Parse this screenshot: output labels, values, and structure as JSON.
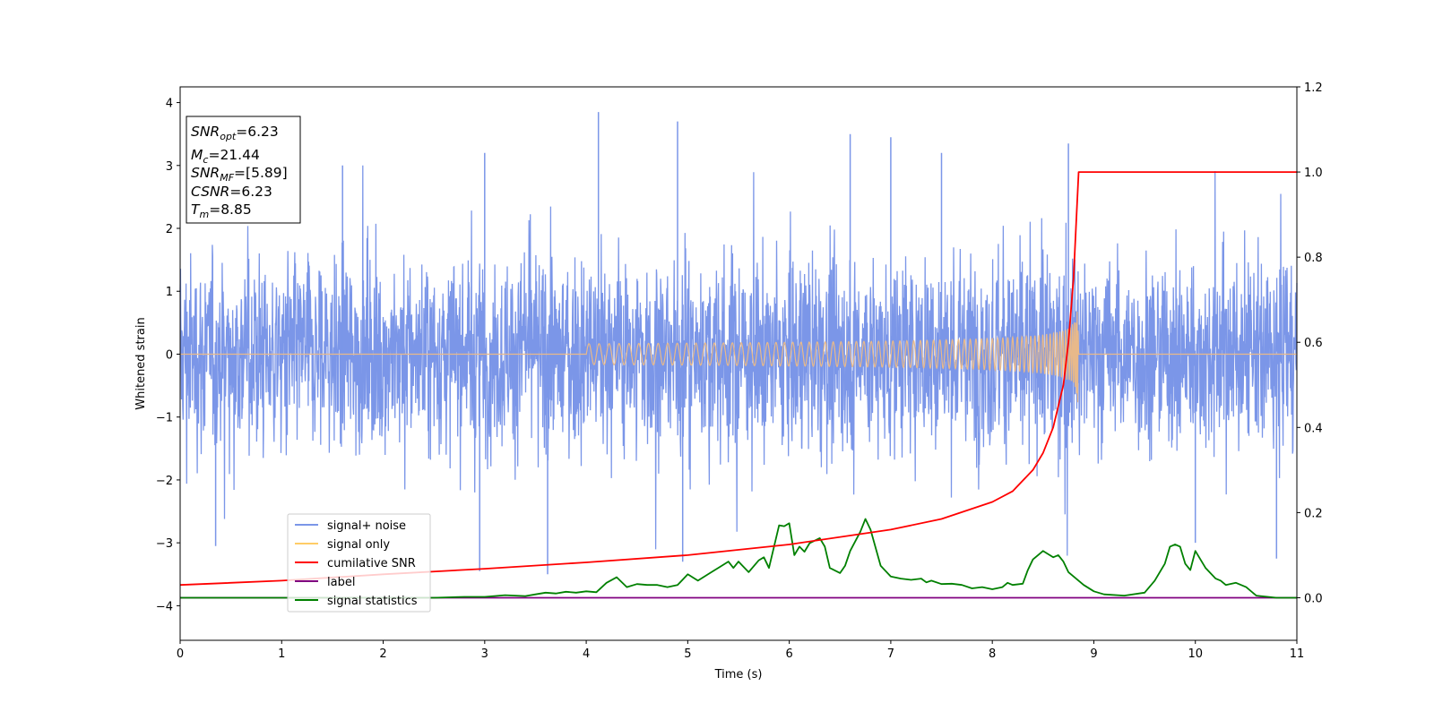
{
  "chart_data": {
    "type": "line",
    "title": "",
    "xlabel": "Time (s)",
    "ylabel": "Whitened strain",
    "y2label": "",
    "xlim": [
      0,
      11
    ],
    "ylim": [
      -4.55,
      4.25
    ],
    "y2lim": [
      -0.1,
      1.2
    ],
    "x_ticks": [
      0,
      1,
      2,
      3,
      4,
      5,
      6,
      7,
      8,
      9,
      10,
      11
    ],
    "y_ticks": [
      -4,
      -3,
      -2,
      -1,
      0,
      1,
      2,
      3,
      4
    ],
    "y2_ticks": [
      0.0,
      0.2,
      0.4,
      0.6,
      0.8,
      1.0,
      1.2
    ],
    "y_tick_labels": [
      "−4",
      "−3",
      "−2",
      "−1",
      "0",
      "1",
      "2",
      "3",
      "4"
    ],
    "y2_tick_labels": [
      "0.0",
      "0.2",
      "0.4",
      "0.6",
      "0.8",
      "1.0",
      "1.2"
    ],
    "grid": false,
    "legend_position": "lower-left",
    "annotation": {
      "snr_opt": "6.23",
      "mc": "21.44",
      "snr_mf": "[5.89]",
      "csnr": "6.23",
      "tm": "8.85"
    },
    "series": [
      {
        "name": "signal+ noise",
        "color": "#7b96e8",
        "axis": "left",
        "kind": "noise",
        "envelope_typical": 1.35,
        "envelope_peak": 3.85,
        "mean": 0.0
      },
      {
        "name": "signal only",
        "color": "#e8b98a",
        "axis": "left",
        "kind": "chirp",
        "merger_time": 8.85,
        "peak_amplitude": 1.1,
        "start_time": 4.0
      },
      {
        "name": "cumilative SNR",
        "color": "#ff0000",
        "axis": "right",
        "x": [
          0,
          1,
          2,
          3,
          4,
          5,
          6,
          7,
          7.5,
          8,
          8.2,
          8.4,
          8.5,
          8.6,
          8.7,
          8.75,
          8.8,
          8.83,
          8.85,
          9,
          10,
          11
        ],
        "values": [
          0.03,
          0.04,
          0.055,
          0.068,
          0.083,
          0.1,
          0.125,
          0.16,
          0.185,
          0.225,
          0.25,
          0.3,
          0.34,
          0.4,
          0.5,
          0.6,
          0.75,
          0.9,
          1.0,
          1.0,
          1.0,
          1.0
        ]
      },
      {
        "name": "label",
        "color": "#800080",
        "axis": "right",
        "x": [
          0,
          11
        ],
        "values": [
          0.0,
          0.0
        ]
      },
      {
        "name": "signal statistics",
        "color": "#008000",
        "axis": "right",
        "x": [
          0,
          0.5,
          1,
          1.5,
          2,
          2.5,
          2.8,
          3,
          3.2,
          3.4,
          3.5,
          3.6,
          3.7,
          3.8,
          3.9,
          4,
          4.1,
          4.2,
          4.3,
          4.4,
          4.5,
          4.6,
          4.7,
          4.8,
          4.9,
          5,
          5.1,
          5.2,
          5.3,
          5.4,
          5.45,
          5.5,
          5.6,
          5.7,
          5.75,
          5.8,
          5.9,
          5.95,
          6,
          6.05,
          6.1,
          6.15,
          6.2,
          6.3,
          6.35,
          6.4,
          6.5,
          6.55,
          6.6,
          6.7,
          6.75,
          6.8,
          6.9,
          7.0,
          7.1,
          7.2,
          7.3,
          7.35,
          7.4,
          7.5,
          7.6,
          7.7,
          7.8,
          7.9,
          8.0,
          8.1,
          8.15,
          8.2,
          8.3,
          8.35,
          8.4,
          8.45,
          8.5,
          8.6,
          8.65,
          8.7,
          8.75,
          8.8,
          8.9,
          9.0,
          9.1,
          9.3,
          9.5,
          9.6,
          9.7,
          9.75,
          9.8,
          9.85,
          9.9,
          9.95,
          10.0,
          10.1,
          10.2,
          10.25,
          10.3,
          10.4,
          10.5,
          10.6,
          10.8,
          11
        ],
        "values": [
          0.0,
          0.0,
          0.0,
          0.0,
          0.0,
          0.0,
          0.002,
          0.002,
          0.006,
          0.004,
          0.008,
          0.012,
          0.01,
          0.014,
          0.012,
          0.015,
          0.013,
          0.035,
          0.048,
          0.025,
          0.032,
          0.03,
          0.03,
          0.025,
          0.03,
          0.055,
          0.04,
          0.055,
          0.07,
          0.085,
          0.07,
          0.085,
          0.06,
          0.088,
          0.095,
          0.07,
          0.17,
          0.168,
          0.175,
          0.1,
          0.12,
          0.108,
          0.128,
          0.14,
          0.12,
          0.07,
          0.058,
          0.075,
          0.11,
          0.155,
          0.185,
          0.16,
          0.075,
          0.05,
          0.045,
          0.042,
          0.045,
          0.036,
          0.04,
          0.032,
          0.033,
          0.03,
          0.022,
          0.025,
          0.02,
          0.025,
          0.035,
          0.03,
          0.033,
          0.065,
          0.09,
          0.1,
          0.11,
          0.095,
          0.1,
          0.085,
          0.06,
          0.05,
          0.03,
          0.015,
          0.008,
          0.005,
          0.012,
          0.04,
          0.08,
          0.12,
          0.125,
          0.12,
          0.08,
          0.065,
          0.11,
          0.07,
          0.045,
          0.04,
          0.03,
          0.035,
          0.025,
          0.005,
          0.0,
          0.0
        ]
      }
    ]
  }
}
